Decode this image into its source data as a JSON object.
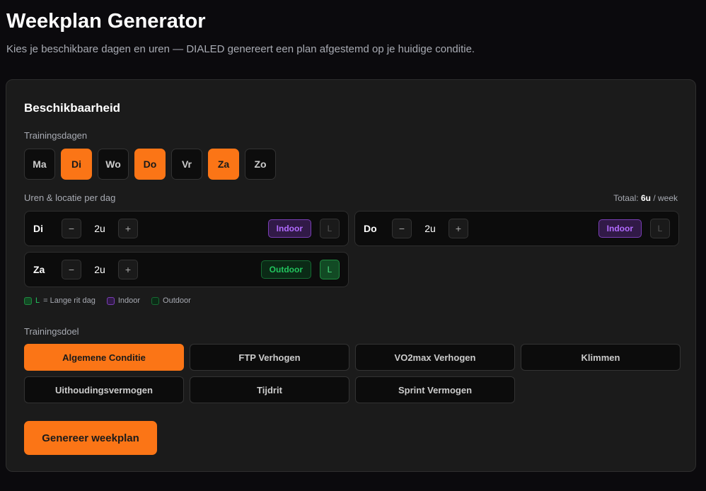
{
  "header": {
    "title": "Weekplan Generator",
    "subtitle": "Kies je beschikbare dagen en uren — DIALED genereert een plan afgestemd op je huidige conditie."
  },
  "availability": {
    "title": "Beschikbaarheid",
    "days_label": "Trainingsdagen",
    "days": [
      {
        "label": "Ma",
        "selected": false
      },
      {
        "label": "Di",
        "selected": true
      },
      {
        "label": "Wo",
        "selected": false
      },
      {
        "label": "Do",
        "selected": true
      },
      {
        "label": "Vr",
        "selected": false
      },
      {
        "label": "Za",
        "selected": true
      },
      {
        "label": "Zo",
        "selected": false
      }
    ],
    "hours_label": "Uren & locatie per dag",
    "total_prefix": "Totaal:",
    "total_value": "6u",
    "total_suffix": "/ week",
    "rows": [
      {
        "day": "Di",
        "hours": "2u",
        "location": "Indoor",
        "long_ride": false
      },
      {
        "day": "Do",
        "hours": "2u",
        "location": "Indoor",
        "long_ride": false
      },
      {
        "day": "Za",
        "hours": "2u",
        "location": "Outdoor",
        "long_ride": true
      }
    ],
    "minus": "−",
    "plus": "+",
    "long_label": "L",
    "legend": {
      "l_key": "L",
      "l_text": "= Lange rit dag",
      "indoor": "Indoor",
      "outdoor": "Outdoor"
    }
  },
  "goal": {
    "label": "Trainingsdoel",
    "options": [
      {
        "label": "Algemene Conditie",
        "selected": true
      },
      {
        "label": "FTP Verhogen"
      },
      {
        "label": "VO2max Verhogen"
      },
      {
        "label": "Klimmen"
      },
      {
        "label": "Uithoudingsvermogen"
      },
      {
        "label": "Tijdrit"
      },
      {
        "label": "Sprint Vermogen"
      }
    ]
  },
  "generate_label": "Genereer weekplan",
  "colors": {
    "accent": "#fb7516",
    "indoor": "#b26bff",
    "outdoor": "#22c55e"
  }
}
